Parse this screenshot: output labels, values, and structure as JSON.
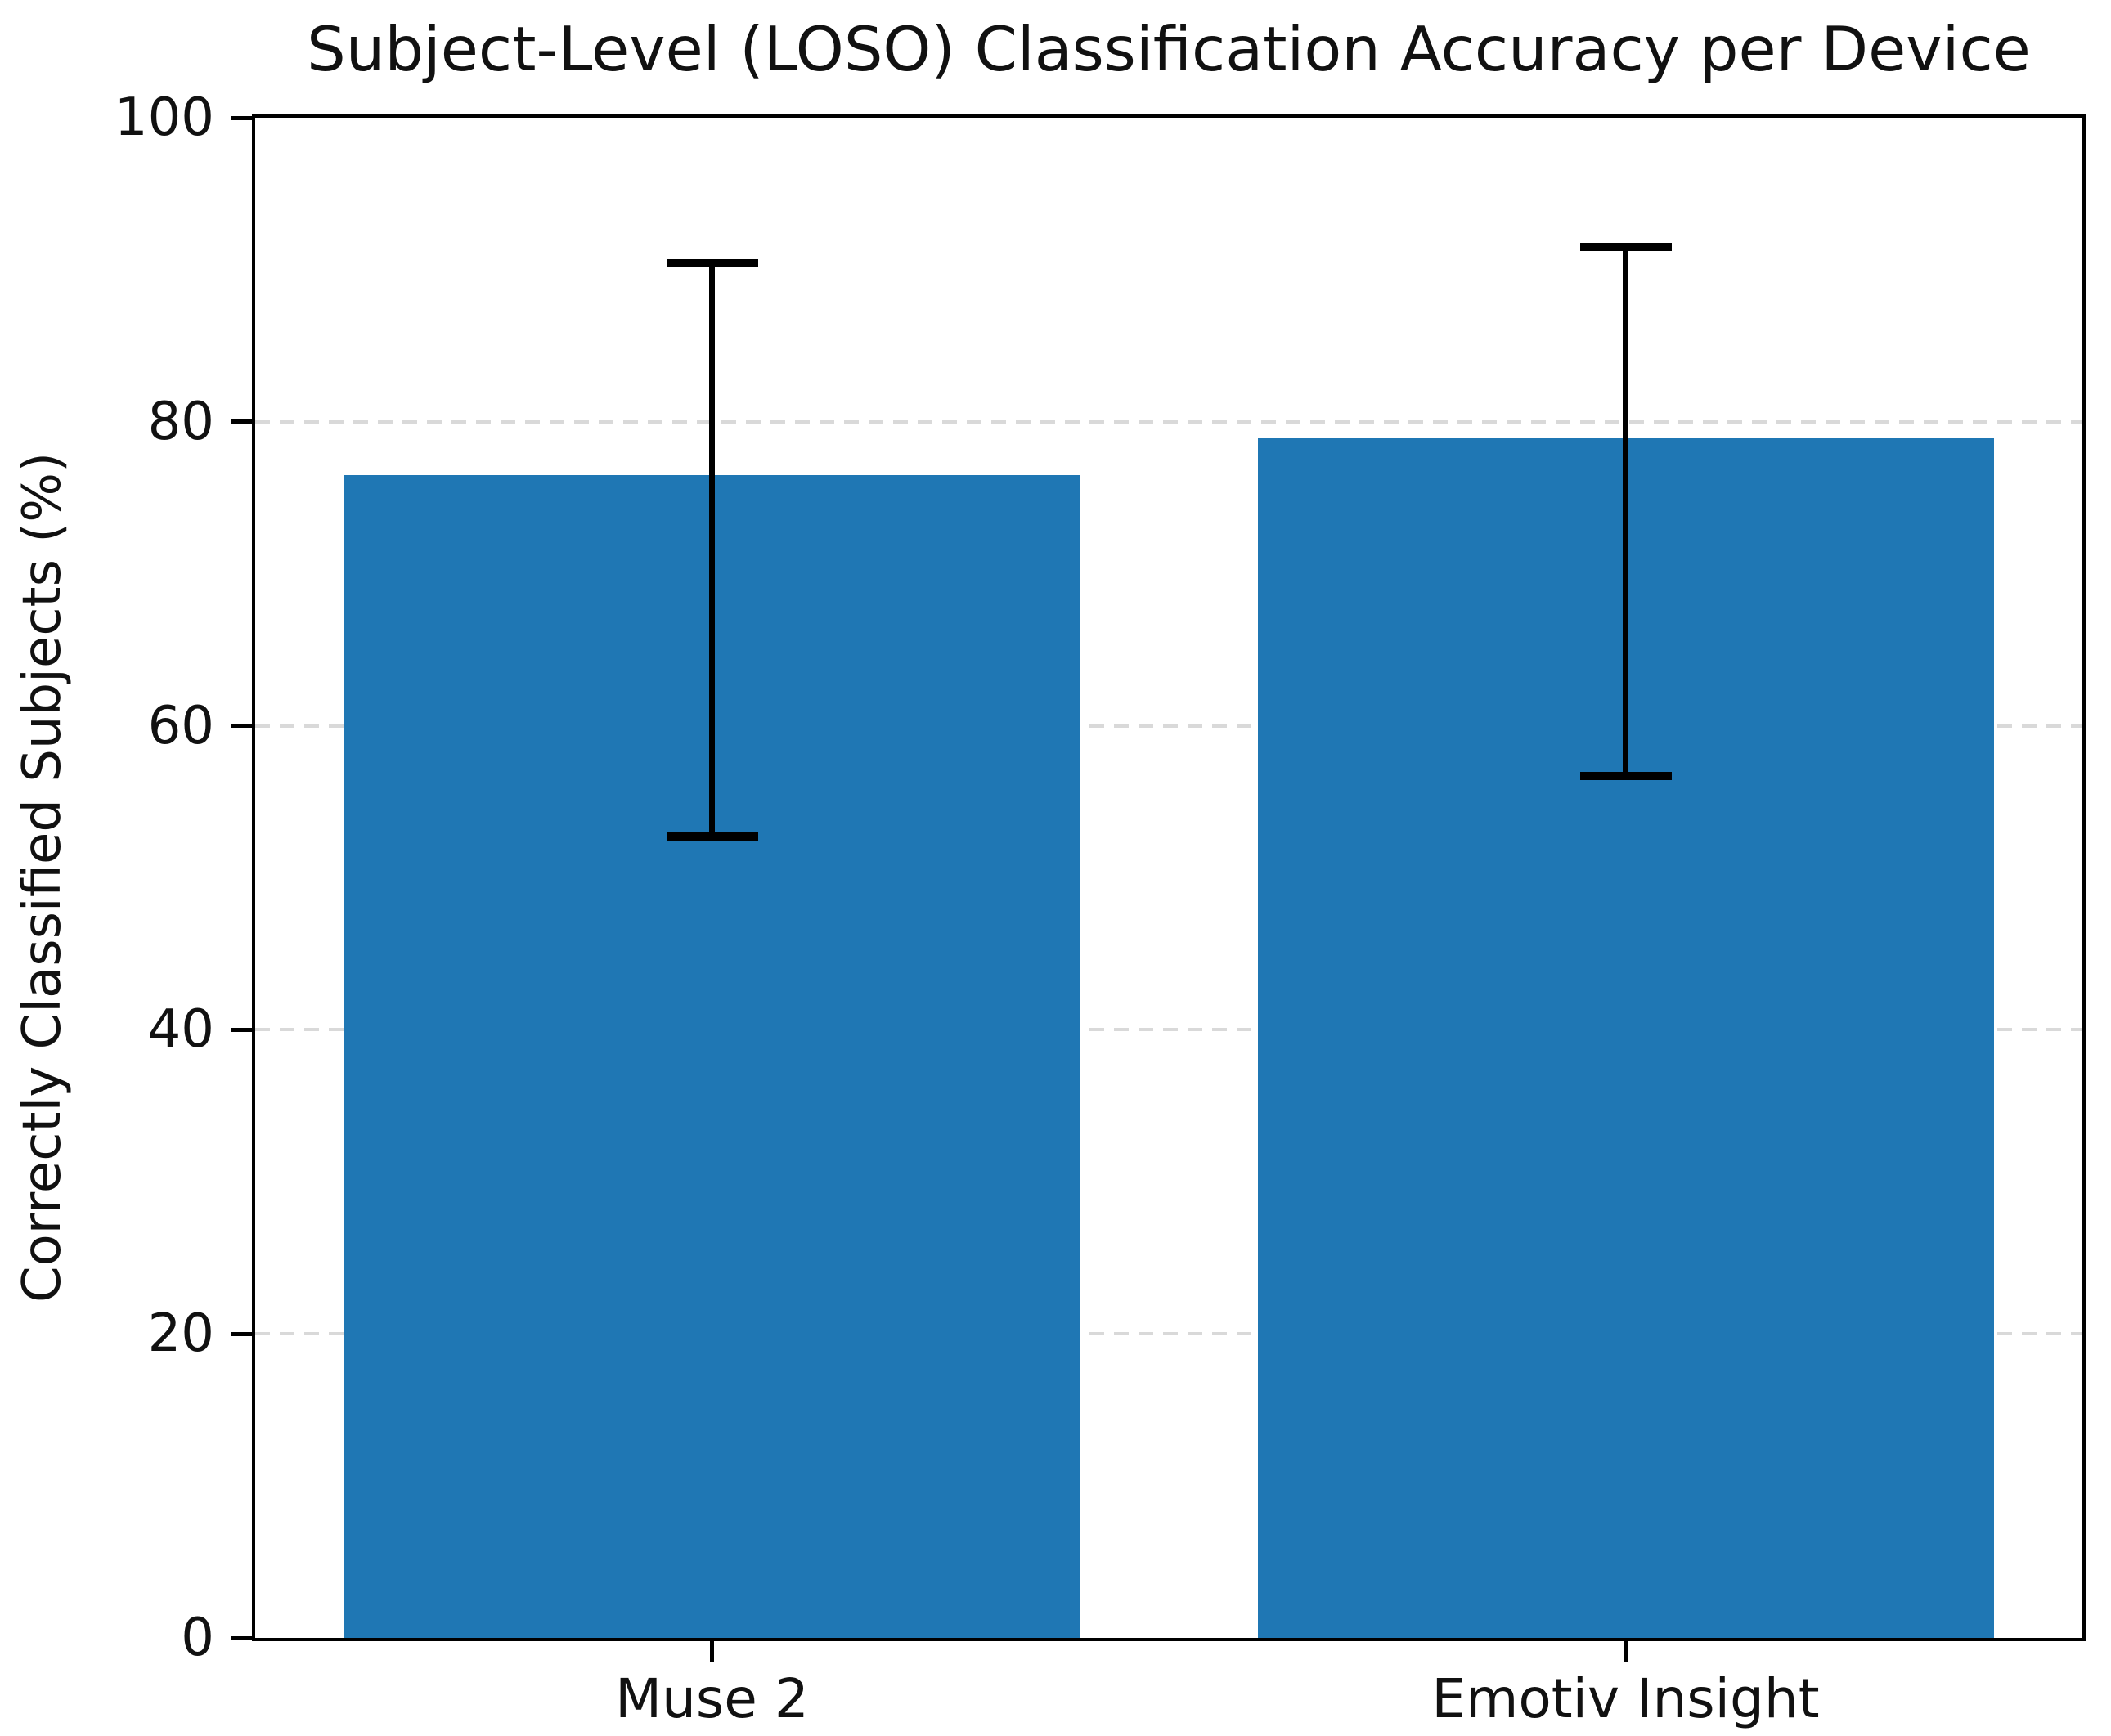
{
  "chart_data": {
    "type": "bar",
    "title": "Subject-Level (LOSO) Classification Accuracy per Device",
    "xlabel": "",
    "ylabel": "Correctly Classified Subjects (%)",
    "categories": [
      "Muse 2",
      "Emotiv Insight"
    ],
    "values": [
      76.5,
      78.9
    ],
    "error_low": [
      52.7,
      56.7
    ],
    "error_high": [
      90.4,
      91.5
    ],
    "ylim": [
      0,
      100
    ],
    "yticks": [
      0,
      20,
      40,
      60,
      80,
      100
    ],
    "grid": "horizontal dashed gridlines at 20/40/60/80, drawn behind bars",
    "legend_position": "none",
    "bar_color": "#1f77b4",
    "error_bar_color": "#000000",
    "grid_color": "#d9d9d9",
    "text_color": "#111111",
    "background_color": "#ffffff"
  }
}
